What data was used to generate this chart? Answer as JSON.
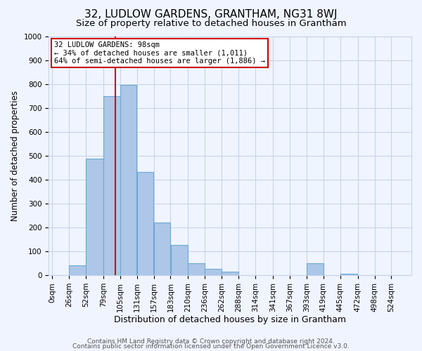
{
  "title": "32, LUDLOW GARDENS, GRANTHAM, NG31 8WJ",
  "subtitle": "Size of property relative to detached houses in Grantham",
  "xlabel": "Distribution of detached houses by size in Grantham",
  "ylabel": "Number of detached properties",
  "bar_labels": [
    "0sqm",
    "26sqm",
    "52sqm",
    "79sqm",
    "105sqm",
    "131sqm",
    "157sqm",
    "183sqm",
    "210sqm",
    "236sqm",
    "262sqm",
    "288sqm",
    "314sqm",
    "341sqm",
    "367sqm",
    "393sqm",
    "419sqm",
    "445sqm",
    "472sqm",
    "498sqm",
    "524sqm"
  ],
  "bar_values": [
    0,
    42,
    488,
    750,
    795,
    432,
    220,
    127,
    50,
    28,
    14,
    0,
    0,
    0,
    0,
    50,
    0,
    7,
    0,
    0,
    0
  ],
  "bar_color": "#aec6e8",
  "bar_edge_color": "#6aaad4",
  "property_line_x": 98,
  "bin_edges": [
    0,
    26,
    52,
    79,
    105,
    131,
    157,
    183,
    210,
    236,
    262,
    288,
    314,
    341,
    367,
    393,
    419,
    445,
    472,
    498,
    524,
    550
  ],
  "ylim": [
    0,
    1000
  ],
  "yticks": [
    0,
    100,
    200,
    300,
    400,
    500,
    600,
    700,
    800,
    900,
    1000
  ],
  "annotation_title": "32 LUDLOW GARDENS: 98sqm",
  "annotation_line1": "← 34% of detached houses are smaller (1,011)",
  "annotation_line2": "64% of semi-detached houses are larger (1,886) →",
  "annotation_box_color": "#ffffff",
  "annotation_box_edge": "#cc0000",
  "vline_color": "#cc0000",
  "footer1": "Contains HM Land Registry data © Crown copyright and database right 2024.",
  "footer2": "Contains public sector information licensed under the Open Government Licence v3.0.",
  "bg_color": "#f0f4ff",
  "grid_color": "#c8d4e8",
  "title_fontsize": 11,
  "subtitle_fontsize": 9.5,
  "xlabel_fontsize": 9,
  "ylabel_fontsize": 8.5,
  "tick_fontsize": 7.5,
  "footer_fontsize": 6.5
}
